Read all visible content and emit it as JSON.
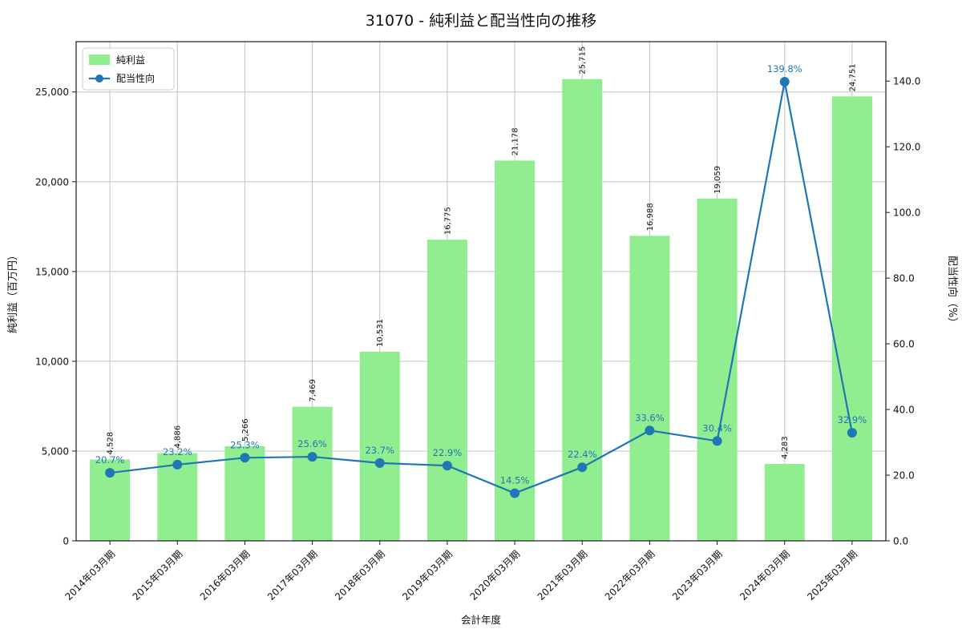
{
  "chart_data": {
    "type": "bar",
    "title": "31070 - 純利益と配当性向の推移",
    "xlabel": "会計年度",
    "ylabel_left": "純利益（百万円）",
    "ylabel_right": "配当性向（%）",
    "grid": true,
    "legend_position": "upper left",
    "categories": [
      "2014年03月期",
      "2015年03月期",
      "2016年03月期",
      "2017年03月期",
      "2018年03月期",
      "2019年03月期",
      "2020年03月期",
      "2021年03月期",
      "2022年03月期",
      "2023年03月期",
      "2024年03月期",
      "2025年03月期"
    ],
    "series": [
      {
        "name": "純利益",
        "type": "bar",
        "axis": "left",
        "color": "#90ee90",
        "values": [
          4528,
          4886,
          5266,
          7469,
          10531,
          16775,
          21178,
          25715,
          16988,
          19059,
          4283,
          24751
        ],
        "labels": [
          "4,528",
          "4,886",
          "5,266",
          "7,469",
          "10,531",
          "16,775",
          "21,178",
          "25,715",
          "16,988",
          "19,059",
          "4,283",
          "24,751"
        ]
      },
      {
        "name": "配当性向",
        "type": "line",
        "axis": "right",
        "color": "#1f77b4",
        "values": [
          20.7,
          23.2,
          25.3,
          25.6,
          23.7,
          22.9,
          14.5,
          22.4,
          33.6,
          30.4,
          139.8,
          32.9
        ],
        "labels": [
          "20.7%",
          "23.2%",
          "25.3%",
          "25.6%",
          "23.7%",
          "22.9%",
          "14.5%",
          "22.4%",
          "33.6%",
          "30.4%",
          "139.8%",
          "32.9%"
        ]
      }
    ],
    "ylim_left": [
      0,
      27800
    ],
    "ylim_right": [
      0,
      152
    ],
    "left_ticks": [
      0,
      5000,
      10000,
      15000,
      20000,
      25000
    ],
    "left_tick_labels": [
      "0",
      "5,000",
      "10,000",
      "15,000",
      "20,000",
      "25,000"
    ],
    "right_ticks": [
      0,
      20,
      40,
      60,
      80,
      100,
      120,
      140
    ],
    "right_tick_labels": [
      "0.0",
      "20.0",
      "40.0",
      "60.0",
      "80.0",
      "100.0",
      "120.0",
      "140.0"
    ],
    "colors": {
      "bar": "#90ee90",
      "line": "#1f77b4",
      "grid": "#c3c3c3",
      "spine": "#1a1a1a",
      "text": "#111111"
    }
  }
}
